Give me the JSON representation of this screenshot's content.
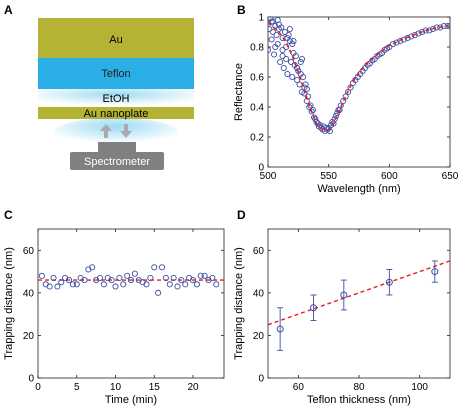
{
  "panels": {
    "A": {
      "letter": "A",
      "layers": {
        "au": "Au",
        "teflon": "Teflon",
        "etoh": "EtOH",
        "nanoplate": "Au nanoplate",
        "spectrometer": "Spectrometer"
      },
      "colors": {
        "au": "#b5b334",
        "teflon": "#29aee6",
        "spectrometer": "#808080",
        "arrow": "#a7a9ac"
      }
    },
    "B": {
      "letter": "B"
    },
    "C": {
      "letter": "C"
    },
    "D": {
      "letter": "D"
    }
  },
  "colors": {
    "marker": "#3b4fa3",
    "fit": "#e31e24",
    "axis": "#231f20"
  },
  "chart_data": [
    {
      "panel": "B",
      "type": "scatter",
      "xlabel": "Wavelength (nm)",
      "ylabel": "Reflectance",
      "xlim": [
        500,
        650
      ],
      "ylim": [
        0,
        1
      ],
      "xticks": [
        500,
        550,
        600,
        650
      ],
      "yticks": [
        0,
        0.2,
        0.4,
        0.6,
        0.8,
        1
      ],
      "ytick_labels": [
        "0",
        "0.2",
        "0.4",
        "0.6",
        "0.8",
        "1"
      ],
      "fit_curve": {
        "x": [
          500,
          505,
          510,
          515,
          520,
          525,
          530,
          535,
          540,
          545,
          548,
          550,
          552,
          555,
          560,
          565,
          570,
          575,
          580,
          590,
          600,
          610,
          620,
          630,
          640,
          650
        ],
        "y": [
          0.96,
          0.93,
          0.89,
          0.83,
          0.74,
          0.63,
          0.51,
          0.39,
          0.29,
          0.25,
          0.245,
          0.25,
          0.27,
          0.31,
          0.4,
          0.49,
          0.57,
          0.63,
          0.68,
          0.75,
          0.81,
          0.85,
          0.88,
          0.91,
          0.93,
          0.94
        ]
      },
      "points": {
        "x": [
          500,
          501,
          502,
          503,
          504,
          505,
          506,
          507,
          508,
          509,
          510,
          511,
          512,
          513,
          514,
          515,
          516,
          517,
          518,
          519,
          520,
          521,
          522,
          523,
          524,
          525,
          526,
          527,
          528,
          529,
          530,
          531,
          532,
          533,
          534,
          535,
          536,
          537,
          538,
          539,
          540,
          541,
          542,
          543,
          544,
          545,
          546,
          547,
          548,
          549,
          550,
          551,
          552,
          553,
          554,
          555,
          556,
          557,
          558,
          559,
          560,
          562,
          564,
          566,
          568,
          570,
          572,
          574,
          576,
          578,
          580,
          582,
          584,
          586,
          588,
          590,
          592,
          594,
          596,
          598,
          600,
          603,
          606,
          609,
          612,
          615,
          618,
          621,
          624,
          627,
          630,
          633,
          636,
          639,
          642,
          645,
          648,
          650,
          503,
          506,
          509,
          512,
          515,
          518,
          521,
          524,
          527,
          530,
          504,
          508,
          512,
          516,
          520,
          524,
          528,
          532
        ],
        "y": [
          0.78,
          0.92,
          0.99,
          0.85,
          0.97,
          0.75,
          0.94,
          0.88,
          0.82,
          0.95,
          0.7,
          0.93,
          0.86,
          0.66,
          0.9,
          0.8,
          0.62,
          0.88,
          0.92,
          0.7,
          0.6,
          0.84,
          0.68,
          0.74,
          0.58,
          0.64,
          0.55,
          0.7,
          0.5,
          0.6,
          0.49,
          0.55,
          0.44,
          0.47,
          0.4,
          0.41,
          0.37,
          0.38,
          0.33,
          0.32,
          0.3,
          0.29,
          0.27,
          0.28,
          0.26,
          0.25,
          0.27,
          0.24,
          0.26,
          0.25,
          0.26,
          0.24,
          0.28,
          0.3,
          0.29,
          0.32,
          0.34,
          0.36,
          0.38,
          0.38,
          0.41,
          0.44,
          0.47,
          0.5,
          0.53,
          0.56,
          0.58,
          0.6,
          0.62,
          0.64,
          0.66,
          0.68,
          0.69,
          0.71,
          0.72,
          0.74,
          0.75,
          0.76,
          0.78,
          0.79,
          0.8,
          0.82,
          0.83,
          0.84,
          0.85,
          0.86,
          0.87,
          0.88,
          0.89,
          0.9,
          0.91,
          0.91,
          0.92,
          0.93,
          0.93,
          0.94,
          0.94,
          0.94,
          0.97,
          0.8,
          0.92,
          0.78,
          0.72,
          0.84,
          0.76,
          0.66,
          0.62,
          0.53,
          0.9,
          0.98,
          0.74,
          0.86,
          0.82,
          0.66,
          0.72,
          0.52
        ]
      }
    },
    {
      "panel": "C",
      "type": "scatter",
      "xlabel": "Time (min)",
      "ylabel": "Trapping distance (nm)",
      "xlim": [
        0,
        24
      ],
      "ylim": [
        0,
        70
      ],
      "xticks": [
        0,
        5,
        10,
        15,
        20
      ],
      "yticks": [
        0,
        20,
        40,
        60
      ],
      "mean_line": 46,
      "points": {
        "x": [
          0.5,
          1.0,
          1.5,
          2.0,
          2.5,
          3.0,
          3.5,
          4.0,
          4.5,
          5.0,
          5.5,
          6.0,
          6.5,
          7.0,
          7.5,
          8.0,
          8.5,
          9.0,
          9.5,
          10.0,
          10.5,
          11.0,
          11.5,
          12.0,
          12.5,
          13.0,
          13.5,
          14.0,
          14.5,
          15.0,
          15.5,
          16.0,
          16.5,
          17.0,
          17.5,
          18.0,
          18.5,
          19.0,
          19.5,
          20.0,
          20.5,
          21.0,
          21.5,
          22.0,
          22.5,
          23.0
        ],
        "y": [
          48,
          44,
          43,
          47,
          43,
          45,
          47,
          46,
          44,
          44,
          47,
          46,
          51,
          52,
          46,
          47,
          44,
          47,
          46,
          43,
          47,
          44,
          48,
          46,
          49,
          46,
          45,
          44,
          47,
          52,
          40,
          52,
          47,
          44,
          47,
          43,
          46,
          44,
          47,
          46,
          44,
          48,
          48,
          46,
          47,
          44
        ]
      }
    },
    {
      "panel": "D",
      "type": "scatter",
      "xlabel": "Teflon thickness (nm)",
      "ylabel": "Trapping distance (nm)",
      "xlim": [
        50,
        110
      ],
      "ylim": [
        0,
        70
      ],
      "xticks": [
        60,
        80,
        100
      ],
      "yticks": [
        0,
        20,
        40,
        60
      ],
      "fit_line": {
        "x": [
          50,
          110
        ],
        "y": [
          25,
          55
        ]
      },
      "points": {
        "x": [
          54,
          65,
          75,
          90,
          105
        ],
        "y": [
          23,
          33,
          39,
          45,
          50
        ],
        "err": [
          10,
          6,
          7,
          6,
          5
        ]
      }
    }
  ]
}
